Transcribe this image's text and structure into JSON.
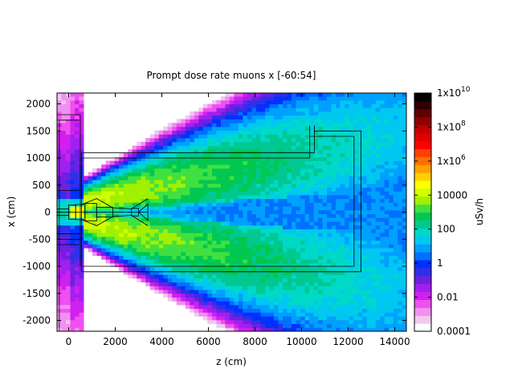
{
  "chart_data": {
    "type": "heatmap",
    "title": "Prompt dose rate muons x [-60:54]",
    "xlabel": "z (cm)",
    "ylabel": "x (cm)",
    "xlim": [
      -500,
      14500
    ],
    "ylim": [
      -2200,
      2200
    ],
    "xticks": [
      0,
      2000,
      4000,
      6000,
      8000,
      10000,
      12000,
      14000
    ],
    "xtick_labels": [
      "0",
      "2000",
      "4000",
      "6000",
      "8000",
      "10000",
      "12000",
      "14000"
    ],
    "yticks": [
      -2000,
      -1500,
      -1000,
      -500,
      0,
      500,
      1000,
      1500,
      2000
    ],
    "ytick_labels": [
      "-2000",
      "-1500",
      "-1000",
      "-500",
      "0",
      "500",
      "1000",
      "1500",
      "2000"
    ],
    "colorbar": {
      "label": "uSv/h",
      "scale": "log",
      "range": [
        0.0001,
        10000000000
      ],
      "ticks": [
        {
          "value": 0.0001,
          "label": "0.0001"
        },
        {
          "value": 0.01,
          "label": "0.01"
        },
        {
          "value": 1,
          "label": "1"
        },
        {
          "value": 100,
          "label": "100"
        },
        {
          "value": 10000,
          "label": "10000"
        },
        {
          "value": 1000000,
          "base": "1x10",
          "exp": "6"
        },
        {
          "value": 100000000,
          "base": "1x10",
          "exp": "8"
        },
        {
          "value": 10000000000,
          "base": "1x10",
          "exp": "10"
        }
      ],
      "colors": [
        "#ffffff",
        "#f0c8f0",
        "#f090f0",
        "#f050f0",
        "#d020f0",
        "#a020f0",
        "#7020e0",
        "#3030e8",
        "#0030ff",
        "#0070ff",
        "#00a0ff",
        "#00c8f0",
        "#00d8c8",
        "#00c890",
        "#00c850",
        "#40e040",
        "#a0f000",
        "#d0ff00",
        "#ffff00",
        "#ffd000",
        "#ffa000",
        "#ff7000",
        "#ff4000",
        "#ff0000",
        "#e00000",
        "#c00000",
        "#900000",
        "#600000",
        "#300000",
        "#000000"
      ]
    },
    "description_regions": {
      "beam_axis_x": 0,
      "forward_cone_peak_uSv_h": 100000
    }
  }
}
